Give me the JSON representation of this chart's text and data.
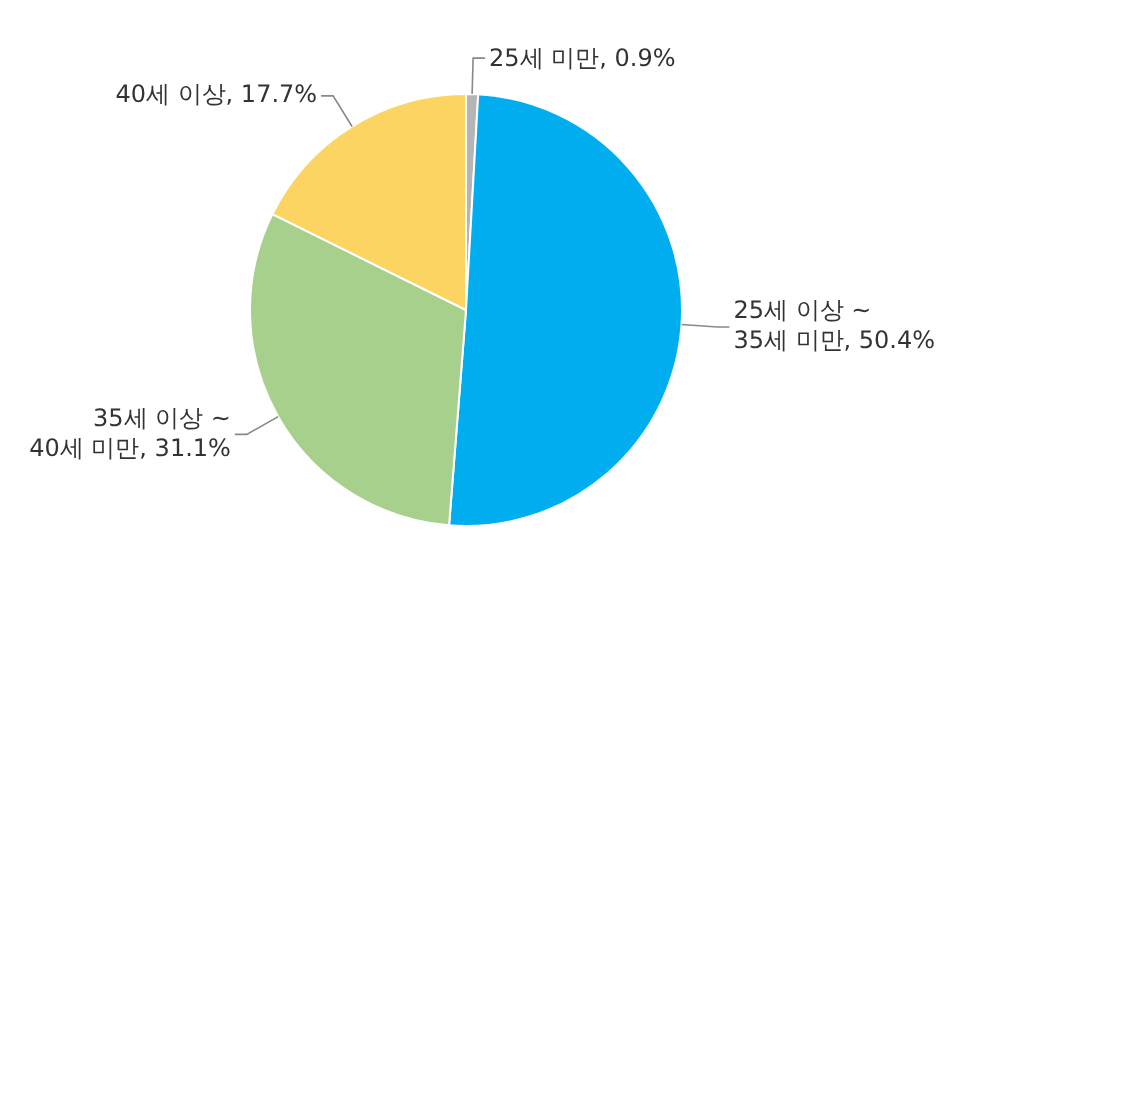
{
  "chart_data": {
    "type": "pie",
    "categories": [
      "25세 미만",
      "25세 이상 ~ 35세 미만",
      "35세 이상 ~ 40세 미만",
      "40세 이상"
    ],
    "values": [
      0.9,
      50.4,
      31.1,
      17.7
    ],
    "value_labels": [
      "0.9%",
      "50.4%",
      "31.1%",
      "17.7%"
    ],
    "colors": [
      "#b5b5b5",
      "#00aeef",
      "#a8d08d",
      "#fcd462"
    ],
    "legend": false
  }
}
